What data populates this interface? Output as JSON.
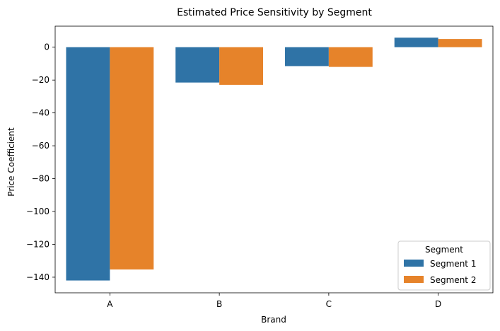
{
  "chart_data": {
    "type": "bar",
    "title": "Estimated Price Sensitivity by Segment",
    "xlabel": "Brand",
    "ylabel": "Price Coefficient",
    "categories": [
      "A",
      "B",
      "C",
      "D"
    ],
    "series": [
      {
        "name": "Segment 1",
        "color": "#2f73a6",
        "values": [
          -142.0,
          -21.5,
          -11.5,
          5.8
        ]
      },
      {
        "name": "Segment 2",
        "color": "#e6832a",
        "values": [
          -135.3,
          -22.9,
          -12.0,
          5.0
        ]
      }
    ],
    "ylim": [
      -149.5,
      12.8
    ],
    "yticks": [
      0,
      -20,
      -40,
      -60,
      -80,
      -100,
      -120,
      -140
    ],
    "ytick_labels": [
      "0",
      "−20",
      "−40",
      "−60",
      "−80",
      "−100",
      "−120",
      "−140"
    ],
    "grid": false,
    "legend": {
      "title": "Segment",
      "placement": "lower-right"
    }
  }
}
